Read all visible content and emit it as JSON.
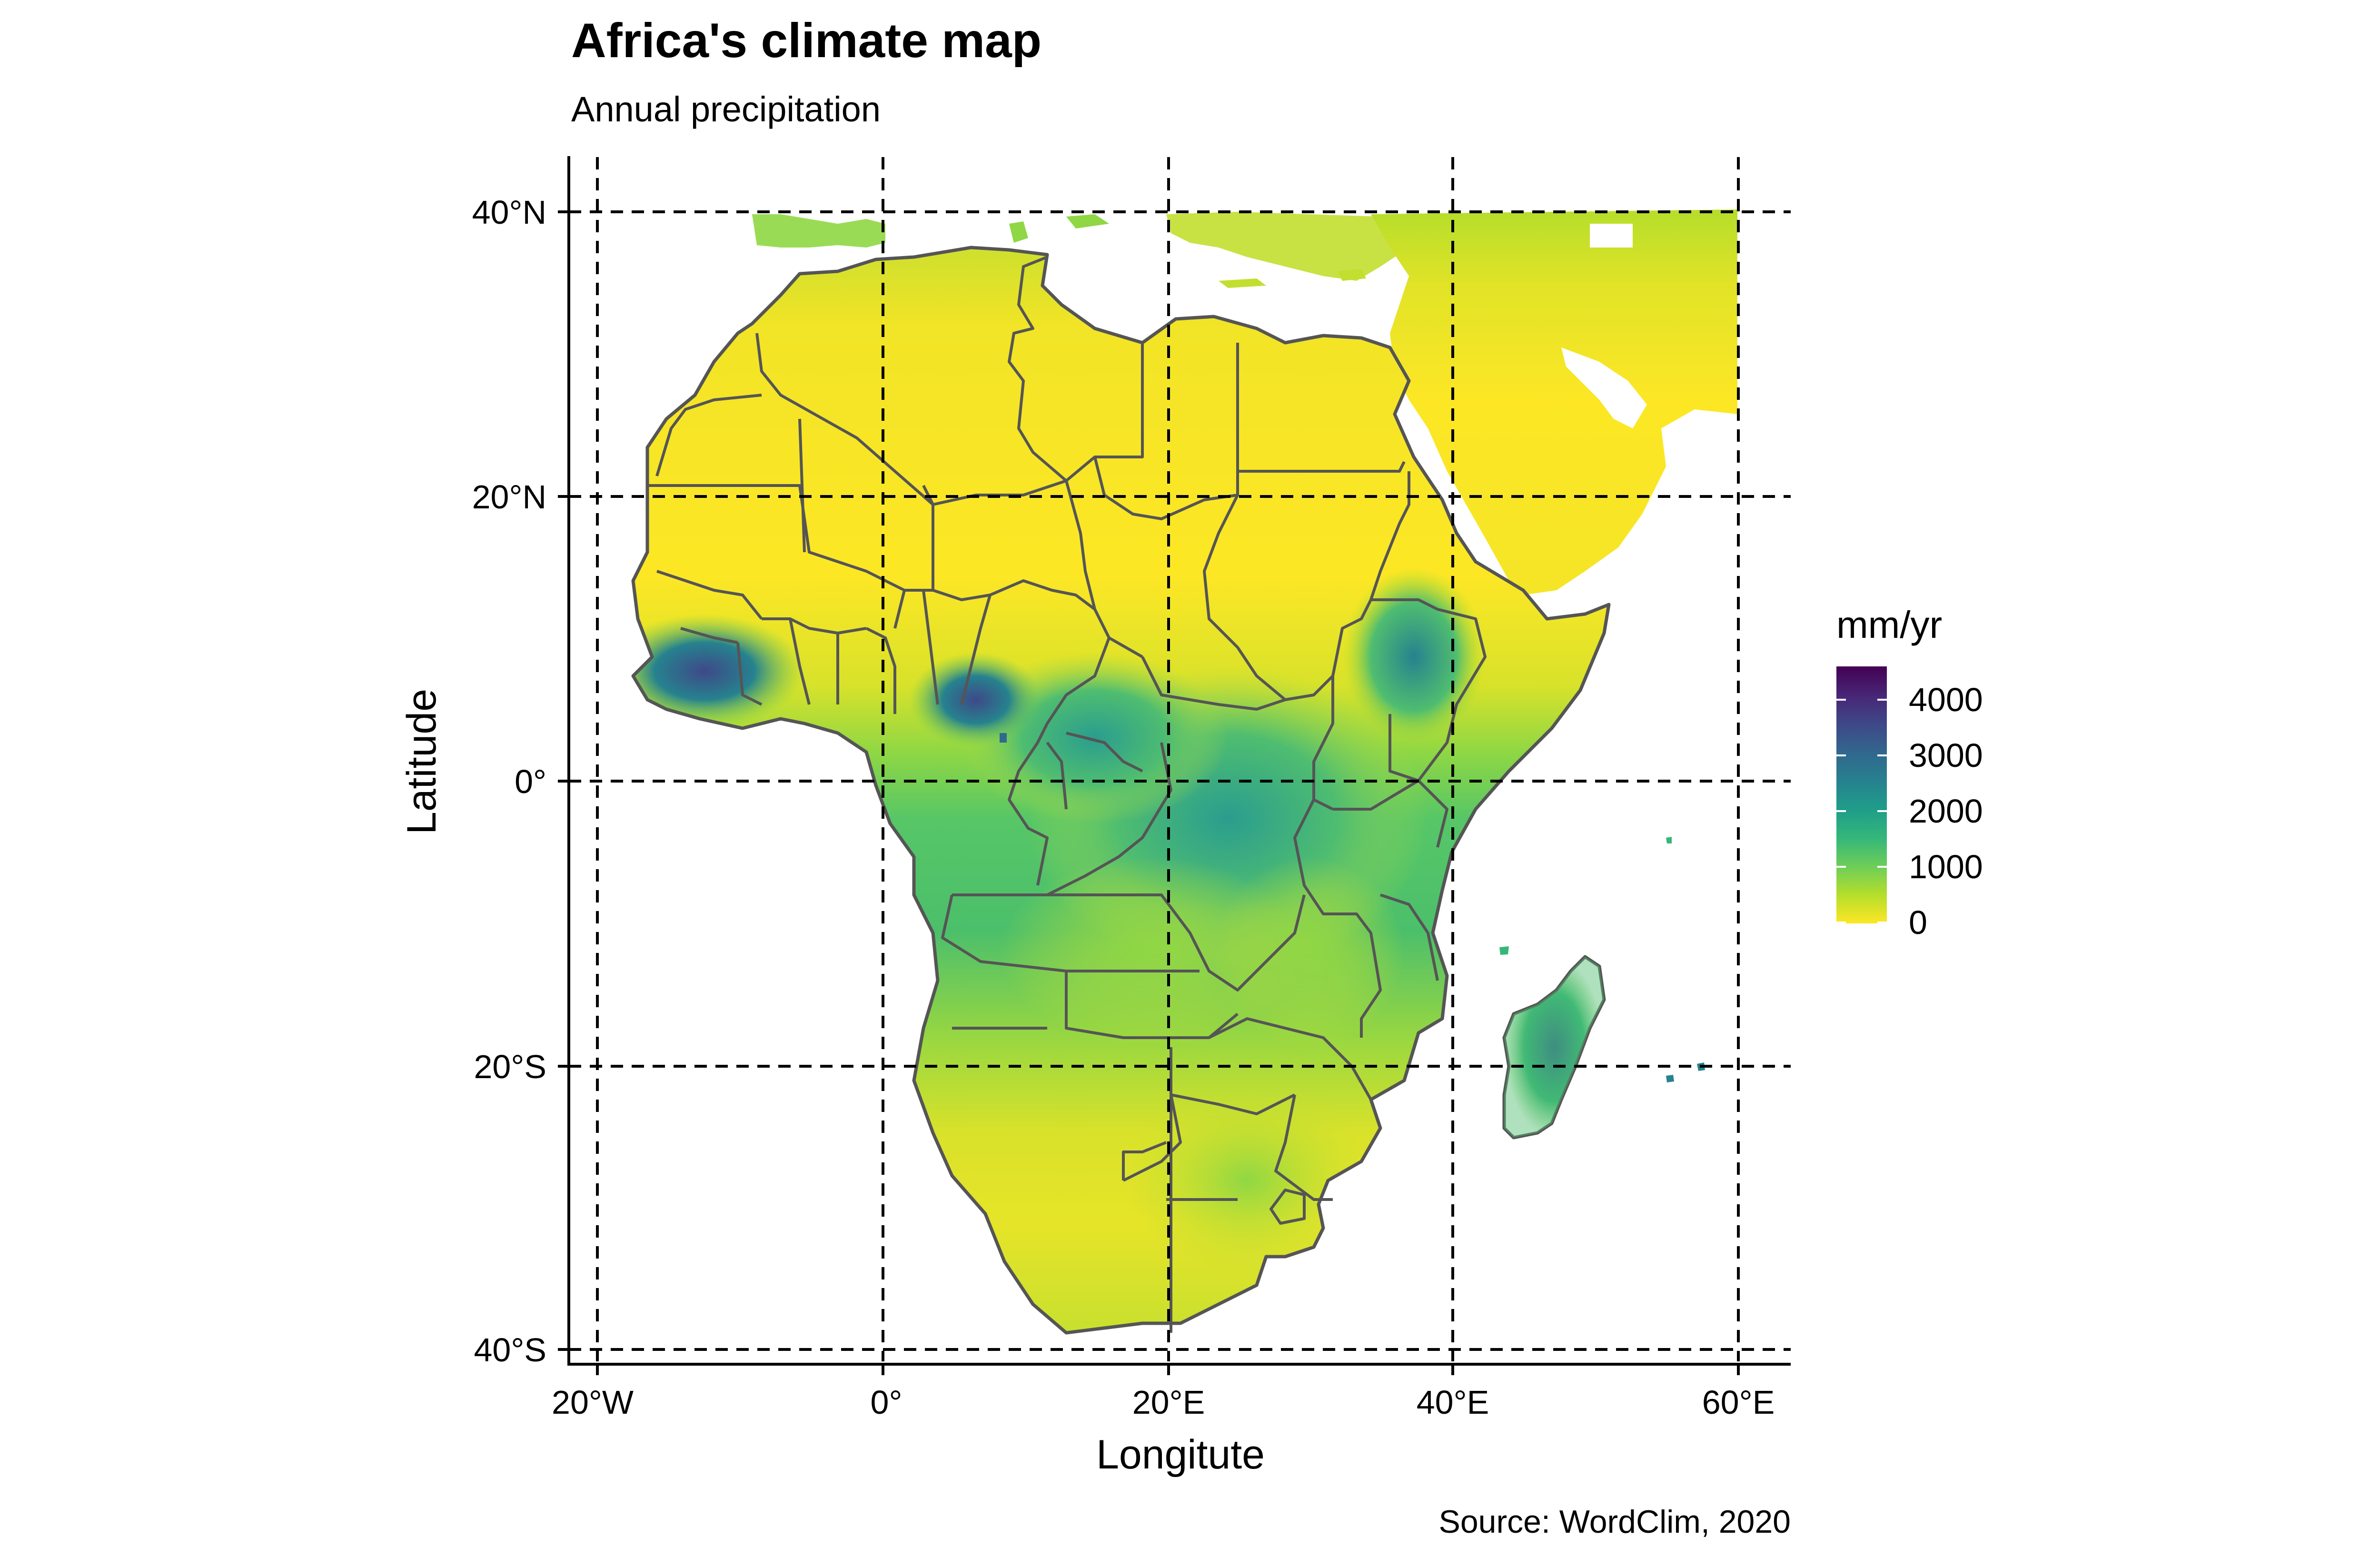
{
  "title": "Africa's climate map",
  "subtitle": "Annual precipitation",
  "caption": "Source: WordClim, 2020",
  "x_axis": {
    "title": "Longitute",
    "ticks": [
      {
        "value": -20,
        "label": "20°W"
      },
      {
        "value": 0,
        "label": "0°"
      },
      {
        "value": 20,
        "label": "20°E"
      },
      {
        "value": 40,
        "label": "40°E"
      },
      {
        "value": 60,
        "label": "60°E"
      }
    ],
    "range": [
      -22,
      62
    ]
  },
  "y_axis": {
    "title": "Latitude",
    "ticks": [
      {
        "value": 40,
        "label": "40°N"
      },
      {
        "value": 20,
        "label": "20°N"
      },
      {
        "value": 0,
        "label": "0°"
      },
      {
        "value": -20,
        "label": "20°S"
      },
      {
        "value": -40,
        "label": "40°S"
      }
    ],
    "range": [
      -41,
      44
    ]
  },
  "graticule": {
    "style": "dashed",
    "color": "#000000"
  },
  "legend": {
    "title": "mm/yr",
    "placement": "right",
    "ticks": [
      {
        "value": 4000,
        "label": "4000"
      },
      {
        "value": 3000,
        "label": "3000"
      },
      {
        "value": 2000,
        "label": "2000"
      },
      {
        "value": 1000,
        "label": "1000"
      },
      {
        "value": 0,
        "label": "0"
      }
    ],
    "range": [
      0,
      4600
    ],
    "palette": "viridis (reversed)",
    "colors": [
      "#fde725",
      "#b5de2b",
      "#6ece58",
      "#35b779",
      "#1f9e89",
      "#26828e",
      "#31688e",
      "#3e4989",
      "#482878",
      "#440154"
    ]
  },
  "map": {
    "region": "Africa",
    "variable": "Annual precipitation",
    "border_color": "#555555",
    "land_base_color": "#f5e024"
  }
}
